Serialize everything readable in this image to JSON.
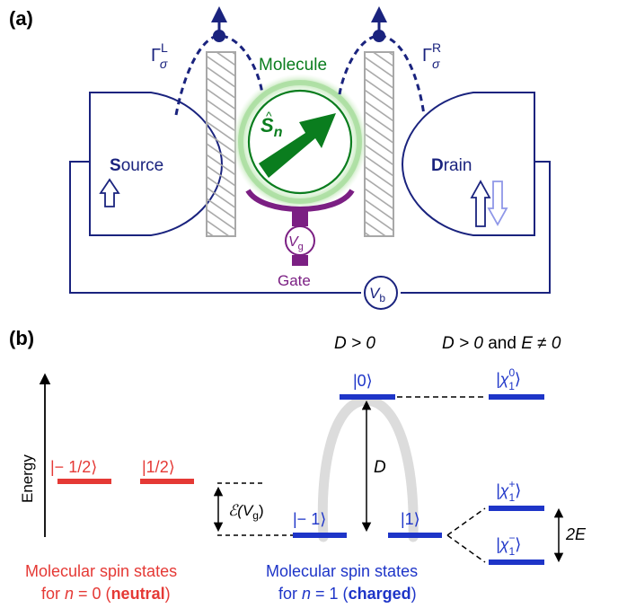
{
  "colors": {
    "navy": "#1a237e",
    "green": "#0a7d1e",
    "purple": "#7b1f83",
    "red": "#e53935",
    "blue": "#1e35c8",
    "gray": "#9e9e9e",
    "light_gray": "#d9d9d9"
  },
  "panel_a": {
    "label": "(a)",
    "source_bold": "S",
    "source_rest": "ource",
    "drain_bold": "D",
    "drain_rest": "rain",
    "molecule": "Molecule",
    "spin_symbol": "S",
    "spin_sub": "n",
    "gate": "Gate",
    "vg_symbol": "V",
    "vg_sub": "g",
    "vb_symbol": "V",
    "vb_sub": "b",
    "gamma_left_sup": "L",
    "gamma_right_sup": "R",
    "gamma_sub": "σ",
    "gamma_symbol": "Γ"
  },
  "panel_b": {
    "label": "(b)",
    "energy_axis": "Energy",
    "col_title_1": "D > 0",
    "col_title_2_a": "D > 0",
    "col_title_2_and": "and",
    "col_title_2_b": "E ≠ 0",
    "neutral_state_1": "|− 1/2⟩",
    "neutral_state_2": "|1/2⟩",
    "charged_state_0": "|0⟩",
    "charged_state_m1": "|− 1⟩",
    "charged_state_p1": "|1⟩",
    "chi_0": "|χ",
    "chi_sub": "1",
    "chi_0_sup": "0",
    "chi_plus_sup": "+",
    "chi_minus_sup": "−",
    "chi_close": "⟩",
    "gap_D": "D",
    "gap_E": "2E",
    "energy_offset": "ℰ(V",
    "energy_offset_sub": "g",
    "energy_offset_close": ")",
    "neutral_caption_1": "Molecular spin states",
    "neutral_caption_2_pre": "for ",
    "neutral_caption_2_n": "n",
    "neutral_caption_2_mid": " = 0 (",
    "neutral_caption_2_bold": "neutral",
    "neutral_caption_2_end": ")",
    "charged_caption_1": "Molecular spin states",
    "charged_caption_2_pre": "for ",
    "charged_caption_2_n": "n",
    "charged_caption_2_mid": " = 1 (",
    "charged_caption_2_bold": "charged",
    "charged_caption_2_end": ")"
  }
}
